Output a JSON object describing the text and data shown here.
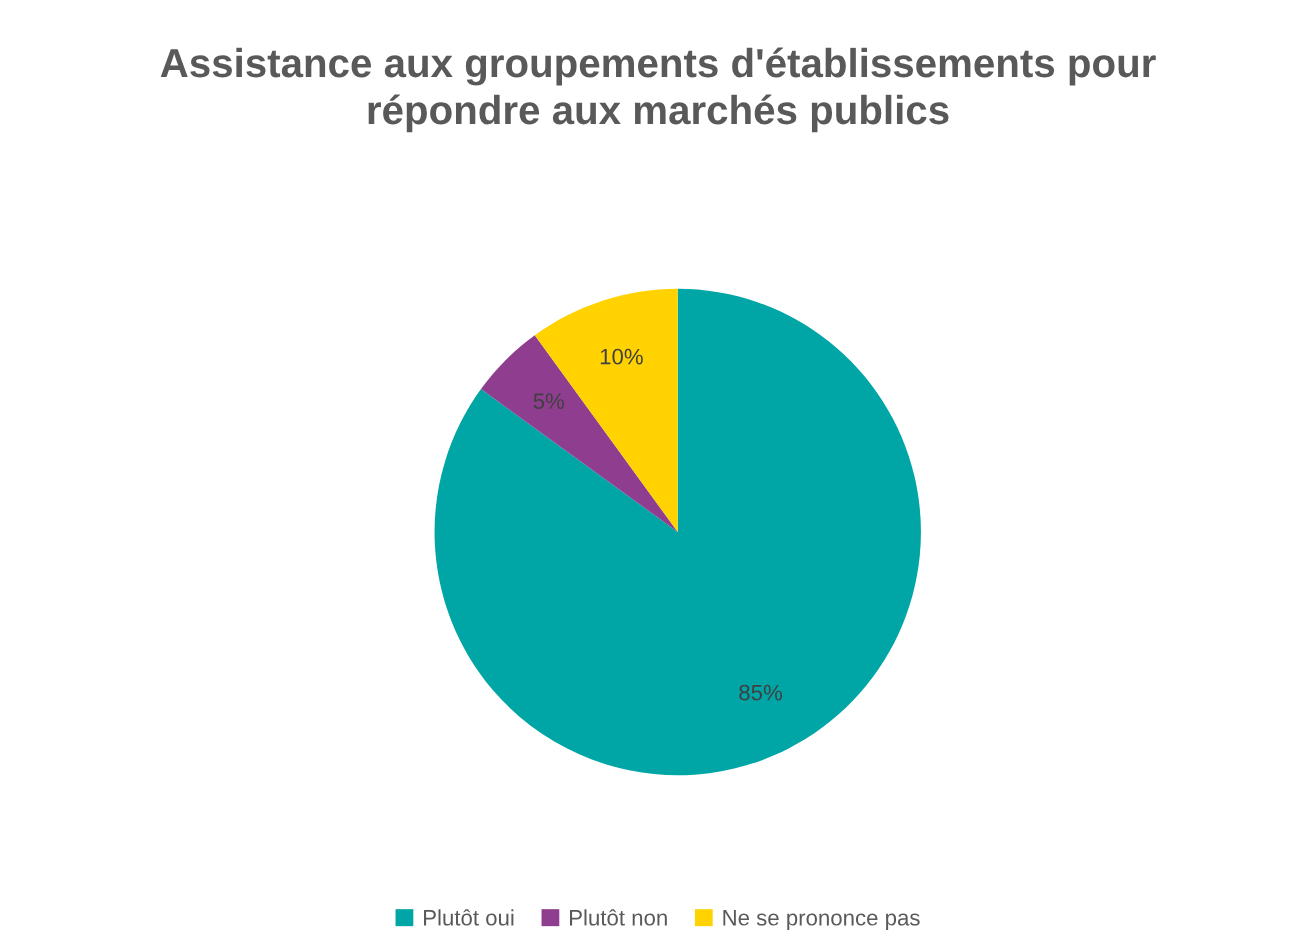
{
  "chart_data": {
    "type": "pie",
    "title": "Assistance aux groupements d'établissements pour\nrépondre aux marchés publics",
    "categories": [
      "Plutôt oui",
      "Plutôt non",
      "Ne se prononce pas"
    ],
    "values": [
      85,
      5,
      10
    ],
    "value_labels": [
      "85%",
      "5%",
      "10%"
    ],
    "colors": [
      "#00a5a5",
      "#8f3d8f",
      "#ffd200"
    ],
    "legend": "bottom"
  }
}
